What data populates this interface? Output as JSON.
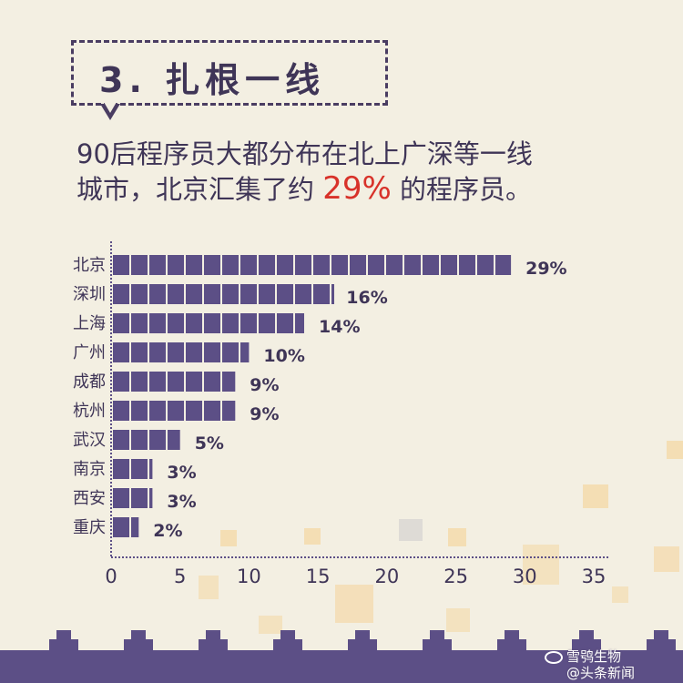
{
  "header": {
    "title": "3. 扎根一线",
    "subtitle_line1": "90后程序员大都分布在北上广深等一线",
    "subtitle_line2_pre": "城市，北京汇集了约",
    "subtitle_highlight": "29%",
    "subtitle_line2_post": "的程序员。"
  },
  "watermark": {
    "line1": "雪鸮生物",
    "line2": "@头条新闻"
  },
  "colors": {
    "bar": "#5c4f86",
    "background": "#f3efe2",
    "highlight": "#d8322a",
    "text": "#3f3557"
  },
  "chart_data": {
    "type": "bar",
    "orientation": "horizontal",
    "categories": [
      "北京",
      "深圳",
      "上海",
      "广州",
      "成都",
      "杭州",
      "武汉",
      "南京",
      "西安",
      "重庆"
    ],
    "values": [
      29,
      16,
      14,
      10,
      9,
      9,
      5,
      3,
      3,
      2
    ],
    "data_labels": [
      "29%",
      "16%",
      "14%",
      "10%",
      "9%",
      "9%",
      "5%",
      "3%",
      "3%",
      "2%"
    ],
    "xlim": [
      0,
      35
    ],
    "xticks": [
      0,
      5,
      10,
      15,
      20,
      25,
      30,
      35
    ],
    "title": "",
    "xlabel": "",
    "ylabel": "",
    "grid": false
  }
}
